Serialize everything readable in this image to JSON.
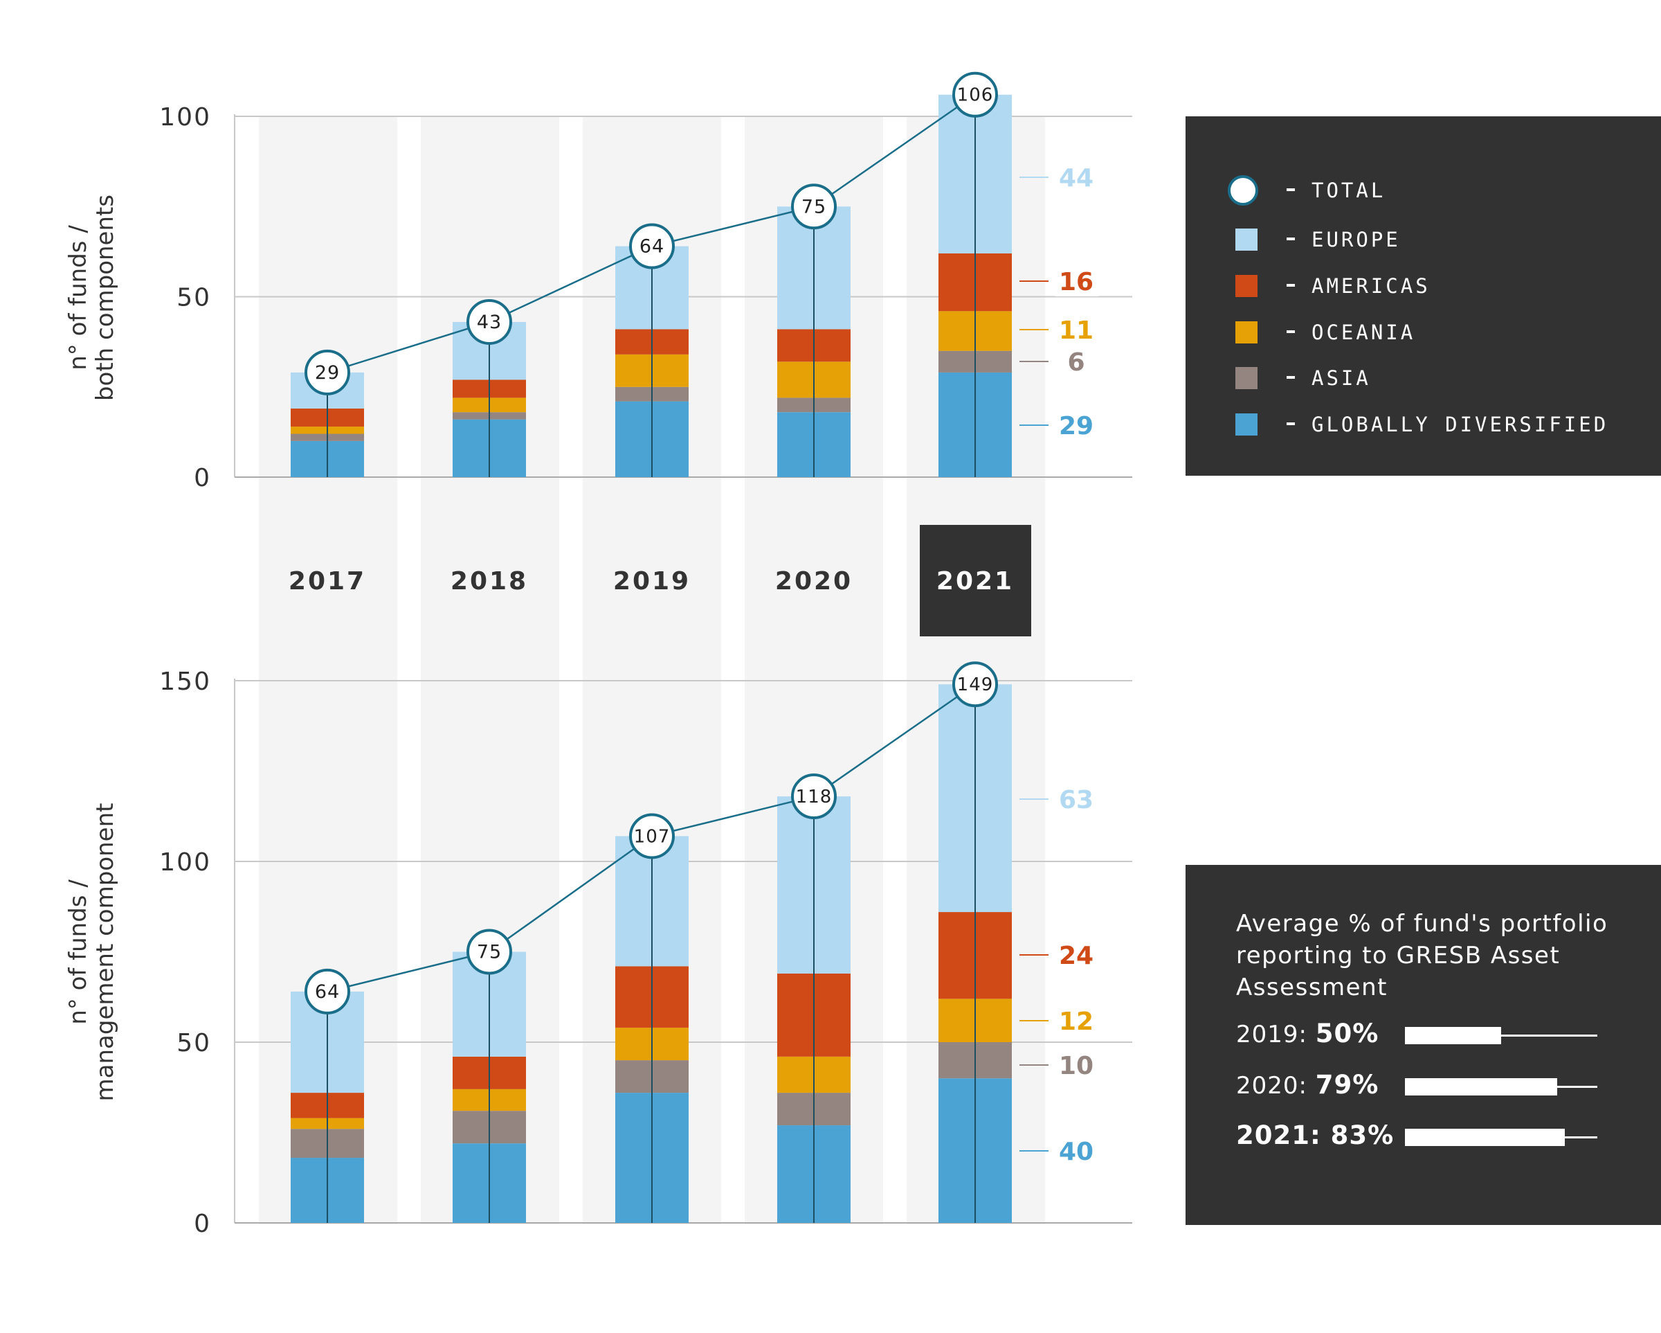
{
  "chart_data": [
    {
      "type": "bar",
      "stacked": true,
      "ylabel": "n° of funds / both components",
      "ylim": [
        0,
        100
      ],
      "yticks": [
        0,
        50,
        100
      ],
      "categories": [
        "2017",
        "2018",
        "2019",
        "2020",
        "2021"
      ],
      "series": [
        {
          "name": "GLOBALLY DIVERSIFIED",
          "color": "#4aa3d3",
          "values": [
            10,
            16,
            21,
            18,
            29
          ]
        },
        {
          "name": "ASIA",
          "color": "#958580",
          "values": [
            2,
            2,
            4,
            4,
            6
          ]
        },
        {
          "name": "OCEANIA",
          "color": "#e5a105",
          "values": [
            2,
            4,
            9,
            10,
            11
          ]
        },
        {
          "name": "AMERICAS",
          "color": "#cf4a17",
          "values": [
            5,
            5,
            7,
            9,
            16
          ]
        },
        {
          "name": "EUROPE",
          "color": "#b2d9f2",
          "values": [
            10,
            16,
            23,
            34,
            44
          ]
        }
      ],
      "totals": [
        29,
        43,
        64,
        75,
        106
      ],
      "annotated_values": [
        {
          "series": "EUROPE",
          "label": "44",
          "color": "#b2d9f2"
        },
        {
          "series": "AMERICAS",
          "label": "16",
          "color": "#cf4a17"
        },
        {
          "series": "OCEANIA",
          "label": "11",
          "color": "#e5a105"
        },
        {
          "series": "ASIA",
          "label": "6",
          "color": "#958580"
        },
        {
          "series": "GLOBALLY DIVERSIFIED",
          "label": "29",
          "color": "#4aa3d3"
        }
      ]
    },
    {
      "type": "bar",
      "stacked": true,
      "ylabel": "n° of funds / management component",
      "ylim": [
        0,
        150
      ],
      "yticks": [
        0,
        50,
        100,
        150
      ],
      "categories": [
        "2017",
        "2018",
        "2019",
        "2020",
        "2021"
      ],
      "series": [
        {
          "name": "GLOBALLY DIVERSIFIED",
          "color": "#4aa3d3",
          "values": [
            18,
            22,
            36,
            27,
            40
          ]
        },
        {
          "name": "ASIA",
          "color": "#958580",
          "values": [
            8,
            9,
            9,
            9,
            10
          ]
        },
        {
          "name": "OCEANIA",
          "color": "#e5a105",
          "values": [
            3,
            6,
            9,
            10,
            12
          ]
        },
        {
          "name": "AMERICAS",
          "color": "#cf4a17",
          "values": [
            7,
            9,
            17,
            23,
            24
          ]
        },
        {
          "name": "EUROPE",
          "color": "#b2d9f2",
          "values": [
            28,
            29,
            36,
            49,
            63
          ]
        }
      ],
      "totals": [
        64,
        75,
        107,
        118,
        149
      ],
      "annotated_values": [
        {
          "series": "EUROPE",
          "label": "63",
          "color": "#b2d9f2"
        },
        {
          "series": "AMERICAS",
          "label": "24",
          "color": "#cf4a17"
        },
        {
          "series": "OCEANIA",
          "label": "12",
          "color": "#e5a105"
        },
        {
          "series": "ASIA",
          "label": "10",
          "color": "#958580"
        },
        {
          "series": "GLOBALLY DIVERSIFIED",
          "label": "40",
          "color": "#4aa3d3"
        }
      ]
    }
  ],
  "years": [
    "2017",
    "2018",
    "2019",
    "2020",
    "2021"
  ],
  "highlighted_year": "2021",
  "colors": {
    "total_line": "#1a6e8a",
    "highlight_bg": "#323232",
    "column_bg": "#f4f4f4",
    "grid": "#c8c8c8",
    "axis_text": "#333333"
  },
  "legend": {
    "items": [
      {
        "key": "total",
        "label": "TOTAL",
        "marker": "circle"
      },
      {
        "key": "europe",
        "label": "EUROPE",
        "color": "#b2d9f2"
      },
      {
        "key": "americas",
        "label": "AMERICAS",
        "color": "#cf4a17"
      },
      {
        "key": "oceania",
        "label": "OCEANIA",
        "color": "#e5a105"
      },
      {
        "key": "asia",
        "label": "ASIA",
        "color": "#958580"
      },
      {
        "key": "global",
        "label": "GLOBALLY DIVERSIFIED",
        "color": "#4aa3d3"
      }
    ]
  },
  "stats": {
    "title": "Average % of fund's portfolio reporting to GRESB Asset Assessment",
    "rows": [
      {
        "year": "2019:",
        "value": "50%",
        "fraction": 0.5
      },
      {
        "year": "2020:",
        "value": "79%",
        "fraction": 0.79
      },
      {
        "year": "2021:",
        "value": "83%",
        "fraction": 0.83,
        "current": true
      }
    ]
  }
}
